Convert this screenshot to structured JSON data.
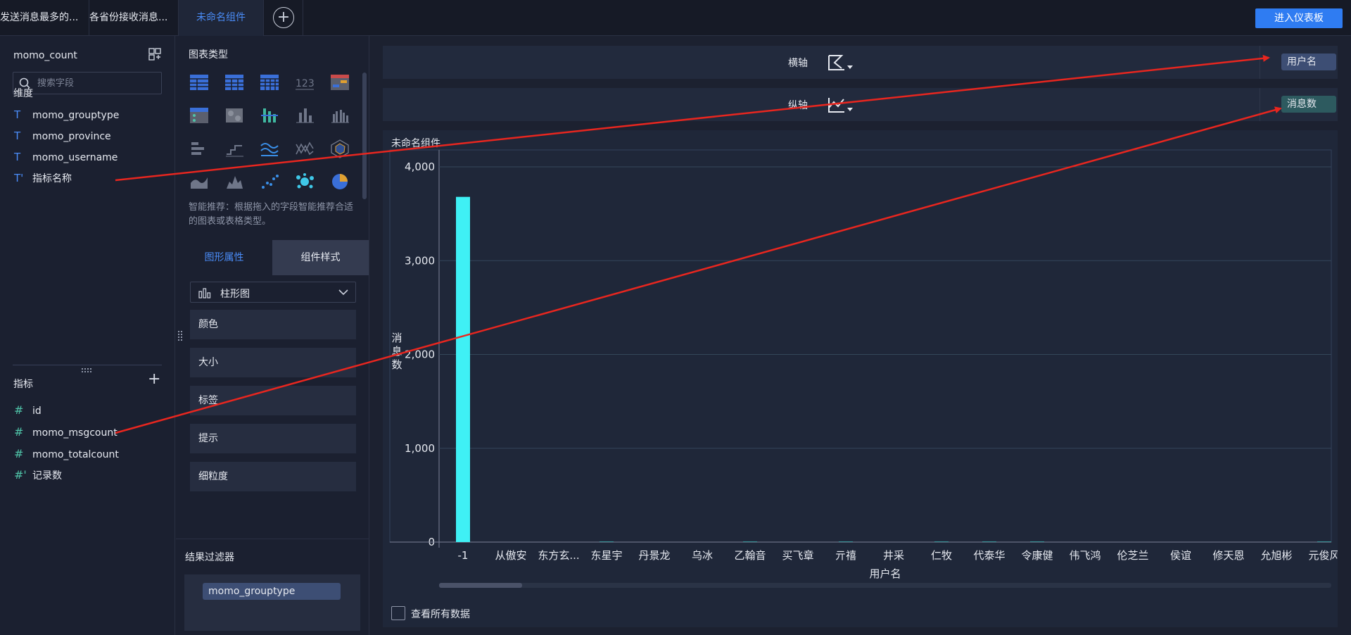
{
  "tabs": [
    {
      "label": "发送消息最多的..."
    },
    {
      "label": "各省份接收消息..."
    },
    {
      "label": "未命名组件"
    }
  ],
  "dashboard_button": "进入仪表板",
  "fields_panel": {
    "dataset": "momo_count",
    "search_placeholder": "搜索字段",
    "dimensions_label": "维度",
    "dimensions": [
      "momo_grouptype",
      "momo_province",
      "momo_username",
      "指标名称"
    ],
    "measures_label": "指标",
    "measures": [
      "id",
      "momo_msgcount",
      "momo_totalcount",
      "记录数"
    ]
  },
  "config_panel": {
    "chart_types_label": "图表类型",
    "hint": "智能推荐：根据拖入的字段智能推荐合适的图表或表格类型。",
    "tab_graph": "图形属性",
    "tab_style": "组件样式",
    "chart_type_selected": "柱形图",
    "properties": [
      "颜色",
      "大小",
      "标签",
      "提示",
      "细粒度"
    ],
    "filter_title": "结果过滤器",
    "filter_field": "momo_grouptype"
  },
  "axes": {
    "x_label": "横轴",
    "x_field": "用户名",
    "y_label": "纵轴",
    "y_field": "消息数"
  },
  "chart_title": "未命名组件",
  "view_all_label": "查看所有数据",
  "colors": {
    "bar": "#3ff0f5",
    "accent": "#2f7cf2",
    "annotation": "#e8261f"
  },
  "chart_data": {
    "type": "bar",
    "categories": [
      "-1",
      "从傲安",
      "东方玄...",
      "东星宇",
      "丹景龙",
      "乌冰",
      "乙翰音",
      "买飞章",
      "亓禧",
      "井采",
      "仁牧",
      "代泰华",
      "令康健",
      "伟飞鸿",
      "伦芝兰",
      "侯谊",
      "修天恩",
      "允旭彬",
      "元俊风"
    ],
    "values": [
      3680,
      0,
      0,
      8,
      0,
      0,
      8,
      0,
      8,
      0,
      8,
      8,
      8,
      0,
      0,
      0,
      0,
      0,
      8
    ],
    "xlabel": "用户名",
    "ylabel": "消息数",
    "ylim": [
      0,
      4000
    ],
    "yticks": [
      0,
      1000,
      2000,
      3000,
      4000
    ],
    "ytick_labels": [
      "0",
      "1,000",
      "2,000",
      "3,000",
      "4,000"
    ],
    "grid": true
  }
}
